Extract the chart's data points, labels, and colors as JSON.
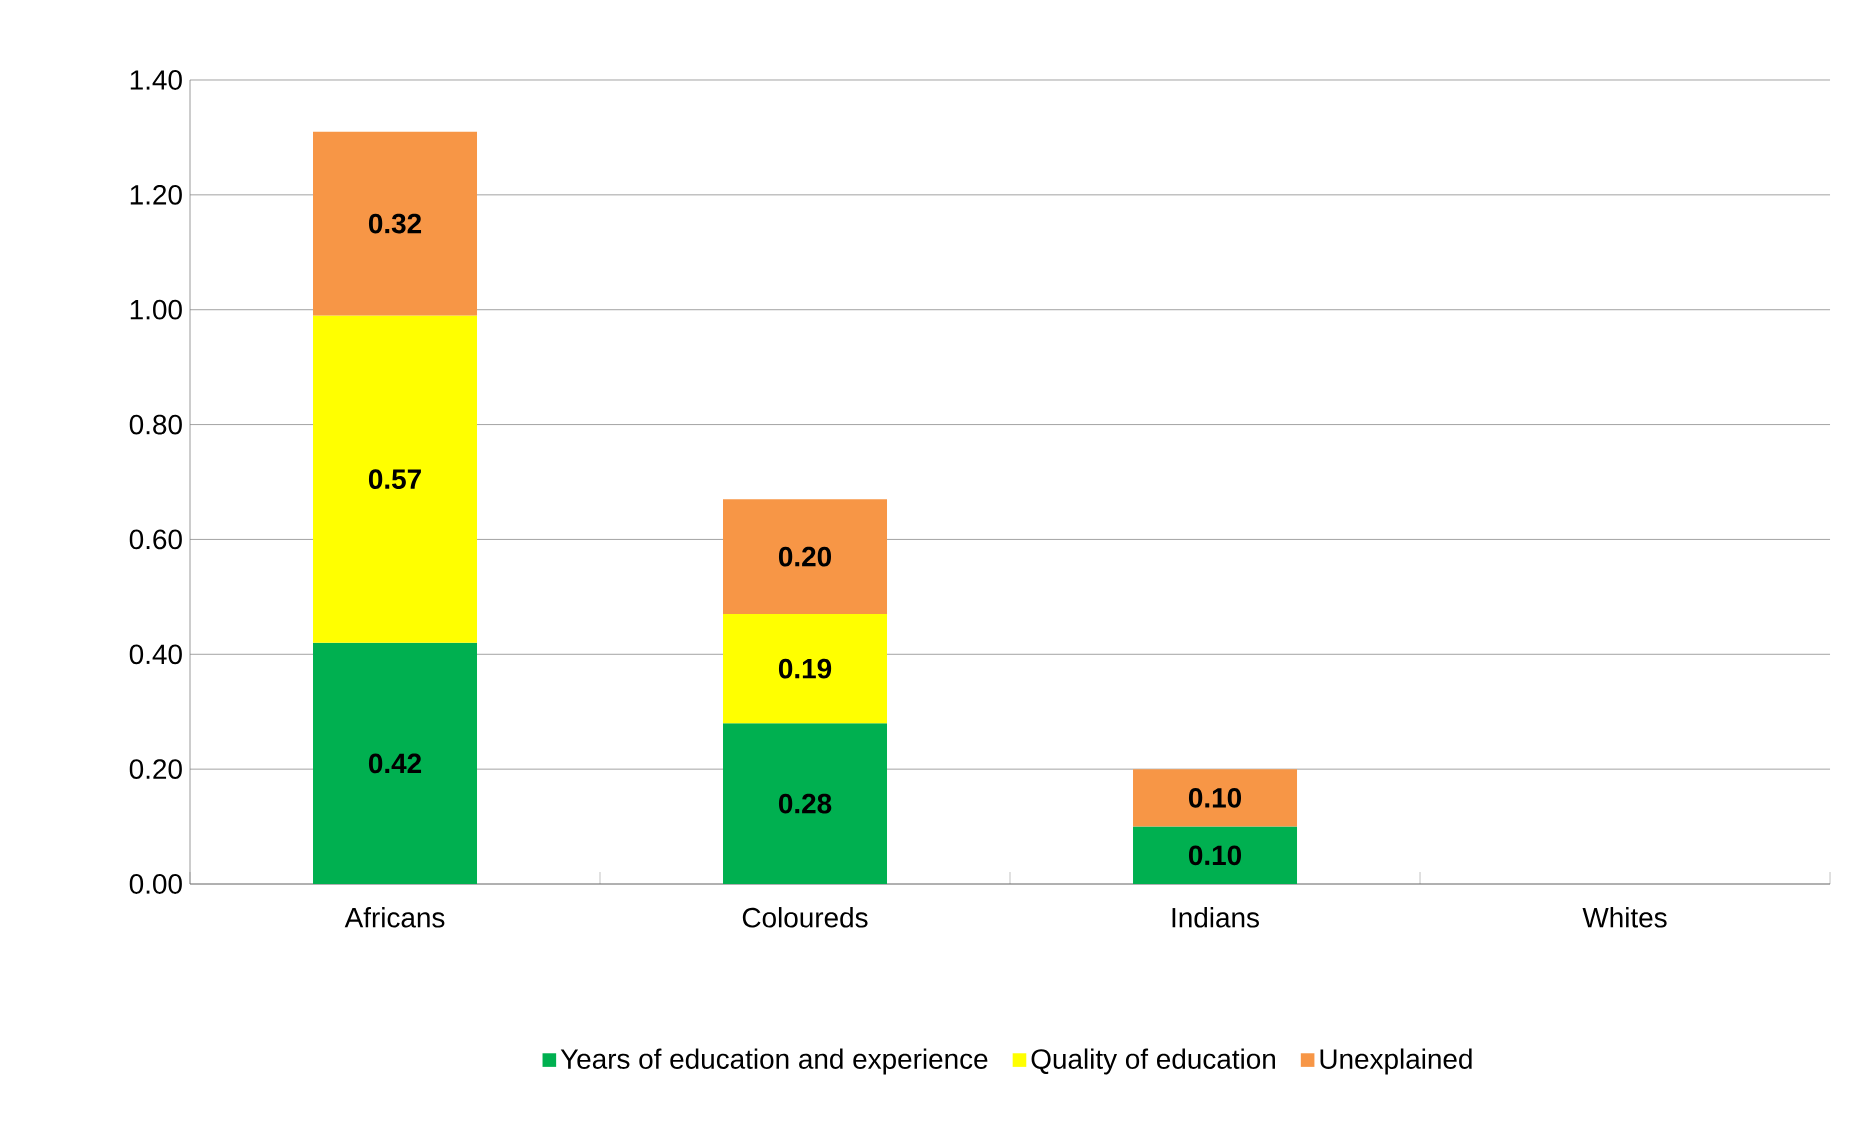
{
  "chart_data": {
    "type": "bar",
    "stacked": true,
    "categories": [
      "Africans",
      "Coloureds",
      "Indians",
      "Whites"
    ],
    "series": [
      {
        "name": "Years of education and experience",
        "color": "#00b050",
        "values": [
          0.42,
          0.28,
          0.1,
          null
        ],
        "value_labels": [
          "0.42",
          "0.28",
          "0.10",
          null
        ]
      },
      {
        "name": "Quality of education",
        "color": "#ffff00",
        "values": [
          0.57,
          0.19,
          null,
          null
        ],
        "value_labels": [
          "0.57",
          "0.19",
          null,
          null
        ]
      },
      {
        "name": "Unexplained",
        "color": "#f79646",
        "values": [
          0.32,
          0.2,
          0.1,
          null
        ],
        "value_labels": [
          "0.32",
          "0.20",
          "0.10",
          null
        ]
      }
    ],
    "ylim": [
      0,
      1.4
    ],
    "yticks": [
      {
        "value": 0,
        "label": "0.00"
      },
      {
        "value": 0.2,
        "label": "0.20"
      },
      {
        "value": 0.4,
        "label": "0.40"
      },
      {
        "value": 0.6,
        "label": "0.60"
      },
      {
        "value": 0.8,
        "label": "0.80"
      },
      {
        "value": 1.0,
        "label": "1.00"
      },
      {
        "value": 1.2,
        "label": "1.20"
      },
      {
        "value": 1.4,
        "label": "1.40"
      }
    ],
    "grid": "y",
    "legend": "bottom"
  }
}
